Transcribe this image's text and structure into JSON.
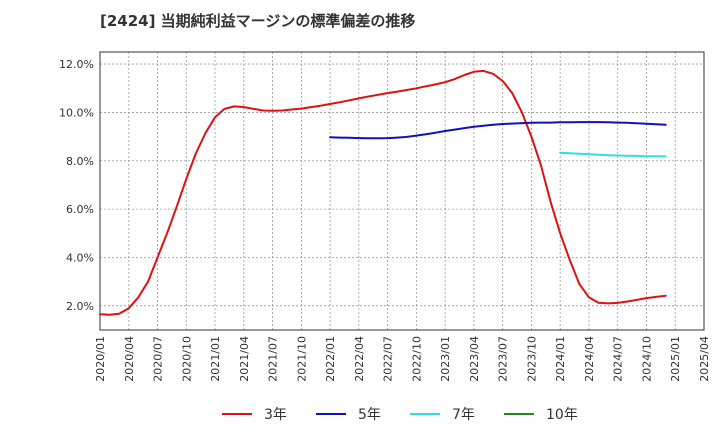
{
  "chart_data": {
    "type": "line",
    "title": "[2424]  当期純利益マージンの標準偏差の推移",
    "xlabel": "",
    "ylabel": "",
    "x_range": [
      2020.0,
      2025.25
    ],
    "ylim": [
      1.0,
      12.5
    ],
    "grid": true,
    "legend_position": "bottom",
    "x_ticks": [
      {
        "label": "2020/01",
        "x": 2020.0
      },
      {
        "label": "2020/04",
        "x": 2020.25
      },
      {
        "label": "2020/07",
        "x": 2020.5
      },
      {
        "label": "2020/10",
        "x": 2020.75
      },
      {
        "label": "2021/01",
        "x": 2021.0
      },
      {
        "label": "2021/04",
        "x": 2021.25
      },
      {
        "label": "2021/07",
        "x": 2021.5
      },
      {
        "label": "2021/10",
        "x": 2021.75
      },
      {
        "label": "2022/01",
        "x": 2022.0
      },
      {
        "label": "2022/04",
        "x": 2022.25
      },
      {
        "label": "2022/07",
        "x": 2022.5
      },
      {
        "label": "2022/10",
        "x": 2022.75
      },
      {
        "label": "2023/01",
        "x": 2023.0
      },
      {
        "label": "2023/04",
        "x": 2023.25
      },
      {
        "label": "2023/07",
        "x": 2023.5
      },
      {
        "label": "2023/10",
        "x": 2023.75
      },
      {
        "label": "2024/01",
        "x": 2024.0
      },
      {
        "label": "2024/04",
        "x": 2024.25
      },
      {
        "label": "2024/07",
        "x": 2024.5
      },
      {
        "label": "2024/10",
        "x": 2024.75
      },
      {
        "label": "2025/01",
        "x": 2025.0
      },
      {
        "label": "2025/04",
        "x": 2025.25
      }
    ],
    "y_ticks": [
      {
        "label": "2.0%",
        "y": 2.0
      },
      {
        "label": "4.0%",
        "y": 4.0
      },
      {
        "label": "6.0%",
        "y": 6.0
      },
      {
        "label": "8.0%",
        "y": 8.0
      },
      {
        "label": "10.0%",
        "y": 10.0
      },
      {
        "label": "12.0%",
        "y": 12.0
      }
    ],
    "series": [
      {
        "name": "3年",
        "color": "#dd1111",
        "points": [
          [
            2020.0,
            1.65
          ],
          [
            2020.083,
            1.63
          ],
          [
            2020.167,
            1.67
          ],
          [
            2020.25,
            1.9
          ],
          [
            2020.333,
            2.35
          ],
          [
            2020.417,
            3.0
          ],
          [
            2020.5,
            4.0
          ],
          [
            2020.583,
            5.0
          ],
          [
            2020.667,
            6.1
          ],
          [
            2020.75,
            7.25
          ],
          [
            2020.833,
            8.3
          ],
          [
            2020.917,
            9.15
          ],
          [
            2021.0,
            9.8
          ],
          [
            2021.083,
            10.15
          ],
          [
            2021.167,
            10.25
          ],
          [
            2021.25,
            10.22
          ],
          [
            2021.333,
            10.15
          ],
          [
            2021.417,
            10.08
          ],
          [
            2021.5,
            10.07
          ],
          [
            2021.583,
            10.08
          ],
          [
            2021.667,
            10.12
          ],
          [
            2021.75,
            10.16
          ],
          [
            2021.833,
            10.22
          ],
          [
            2021.917,
            10.28
          ],
          [
            2022.0,
            10.35
          ],
          [
            2022.083,
            10.42
          ],
          [
            2022.167,
            10.5
          ],
          [
            2022.25,
            10.58
          ],
          [
            2022.333,
            10.66
          ],
          [
            2022.417,
            10.73
          ],
          [
            2022.5,
            10.8
          ],
          [
            2022.583,
            10.86
          ],
          [
            2022.667,
            10.93
          ],
          [
            2022.75,
            11.0
          ],
          [
            2022.833,
            11.08
          ],
          [
            2022.917,
            11.16
          ],
          [
            2023.0,
            11.25
          ],
          [
            2023.083,
            11.38
          ],
          [
            2023.167,
            11.55
          ],
          [
            2023.25,
            11.68
          ],
          [
            2023.333,
            11.72
          ],
          [
            2023.417,
            11.6
          ],
          [
            2023.5,
            11.3
          ],
          [
            2023.583,
            10.8
          ],
          [
            2023.667,
            10.0
          ],
          [
            2023.75,
            9.0
          ],
          [
            2023.833,
            7.8
          ],
          [
            2023.917,
            6.3
          ],
          [
            2024.0,
            5.0
          ],
          [
            2024.083,
            3.9
          ],
          [
            2024.167,
            2.9
          ],
          [
            2024.25,
            2.35
          ],
          [
            2024.333,
            2.13
          ],
          [
            2024.417,
            2.1
          ],
          [
            2024.5,
            2.12
          ],
          [
            2024.583,
            2.18
          ],
          [
            2024.667,
            2.25
          ],
          [
            2024.75,
            2.32
          ],
          [
            2024.833,
            2.37
          ],
          [
            2024.917,
            2.42
          ]
        ]
      },
      {
        "name": "5年",
        "color": "#1111bb",
        "points": [
          [
            2022.0,
            8.97
          ],
          [
            2022.083,
            8.96
          ],
          [
            2022.167,
            8.95
          ],
          [
            2022.25,
            8.94
          ],
          [
            2022.333,
            8.93
          ],
          [
            2022.417,
            8.93
          ],
          [
            2022.5,
            8.94
          ],
          [
            2022.583,
            8.96
          ],
          [
            2022.667,
            8.99
          ],
          [
            2022.75,
            9.04
          ],
          [
            2022.833,
            9.1
          ],
          [
            2022.917,
            9.16
          ],
          [
            2023.0,
            9.23
          ],
          [
            2023.083,
            9.29
          ],
          [
            2023.167,
            9.35
          ],
          [
            2023.25,
            9.41
          ],
          [
            2023.333,
            9.45
          ],
          [
            2023.417,
            9.49
          ],
          [
            2023.5,
            9.52
          ],
          [
            2023.583,
            9.54
          ],
          [
            2023.667,
            9.56
          ],
          [
            2023.75,
            9.57
          ],
          [
            2023.833,
            9.58
          ],
          [
            2023.917,
            9.58
          ],
          [
            2024.0,
            9.59
          ],
          [
            2024.083,
            9.59
          ],
          [
            2024.167,
            9.6
          ],
          [
            2024.25,
            9.6
          ],
          [
            2024.333,
            9.6
          ],
          [
            2024.417,
            9.59
          ],
          [
            2024.5,
            9.58
          ],
          [
            2024.583,
            9.57
          ],
          [
            2024.667,
            9.55
          ],
          [
            2024.75,
            9.53
          ],
          [
            2024.833,
            9.51
          ],
          [
            2024.917,
            9.49
          ]
        ]
      },
      {
        "name": "7年",
        "color": "#33dddd",
        "points": [
          [
            2024.0,
            8.33
          ],
          [
            2024.083,
            8.31
          ],
          [
            2024.167,
            8.29
          ],
          [
            2024.25,
            8.27
          ],
          [
            2024.333,
            8.25
          ],
          [
            2024.417,
            8.23
          ],
          [
            2024.5,
            8.22
          ],
          [
            2024.583,
            8.21
          ],
          [
            2024.667,
            8.2
          ],
          [
            2024.75,
            8.19
          ],
          [
            2024.833,
            8.19
          ],
          [
            2024.917,
            8.18
          ]
        ]
      },
      {
        "name": "10年",
        "color": "#228822",
        "points": []
      }
    ]
  }
}
